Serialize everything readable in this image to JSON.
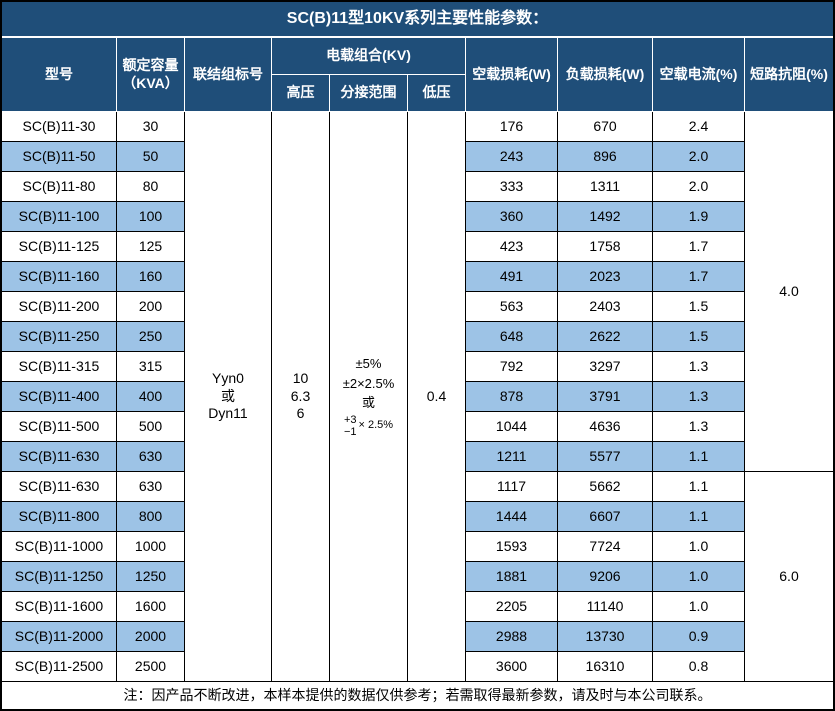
{
  "title": "SC(B)11型10KV系列主要性能参数：",
  "colors": {
    "header_bg": "#1F4E79",
    "row_stripe": "#9DC3E6",
    "grid_border": "#000000"
  },
  "table": {
    "headers": {
      "model": "型号",
      "capacity_line1": "额定容量",
      "capacity_line2": "（KVA）",
      "connection": "联结组标号",
      "load_combo": "电载组合(KV)",
      "hv": "高压",
      "tap": "分接范围",
      "lv": "低压",
      "no_load_loss": "空载损耗(W)",
      "load_loss": "负载损耗(W)",
      "no_load_current": "空载电流(%)",
      "impedance": "短路抗阻(%)"
    },
    "merged": {
      "connection_lines": [
        "Yyn0",
        "或",
        "Dyn11"
      ],
      "hv_lines": [
        "10",
        "6.3",
        "6"
      ],
      "tap": {
        "line1": "±5%",
        "line2": "±2×2.5%",
        "line3": "或",
        "stack_top": "+3",
        "stack_bottom": "−1",
        "stack_suffix": "× 2.5%"
      },
      "lv": "0.4"
    },
    "rows": [
      {
        "model": "SC(B)11-30",
        "kva": "30",
        "no_load_loss": "176",
        "load_loss": "670",
        "no_load_current": "2.4"
      },
      {
        "model": "SC(B)11-50",
        "kva": "50",
        "no_load_loss": "243",
        "load_loss": "896",
        "no_load_current": "2.0"
      },
      {
        "model": "SC(B)11-80",
        "kva": "80",
        "no_load_loss": "333",
        "load_loss": "1311",
        "no_load_current": "2.0"
      },
      {
        "model": "SC(B)11-100",
        "kva": "100",
        "no_load_loss": "360",
        "load_loss": "1492",
        "no_load_current": "1.9"
      },
      {
        "model": "SC(B)11-125",
        "kva": "125",
        "no_load_loss": "423",
        "load_loss": "1758",
        "no_load_current": "1.7"
      },
      {
        "model": "SC(B)11-160",
        "kva": "160",
        "no_load_loss": "491",
        "load_loss": "2023",
        "no_load_current": "1.7"
      },
      {
        "model": "SC(B)11-200",
        "kva": "200",
        "no_load_loss": "563",
        "load_loss": "2403",
        "no_load_current": "1.5"
      },
      {
        "model": "SC(B)11-250",
        "kva": "250",
        "no_load_loss": "648",
        "load_loss": "2622",
        "no_load_current": "1.5"
      },
      {
        "model": "SC(B)11-315",
        "kva": "315",
        "no_load_loss": "792",
        "load_loss": "3297",
        "no_load_current": "1.3"
      },
      {
        "model": "SC(B)11-400",
        "kva": "400",
        "no_load_loss": "878",
        "load_loss": "3791",
        "no_load_current": "1.3"
      },
      {
        "model": "SC(B)11-500",
        "kva": "500",
        "no_load_loss": "1044",
        "load_loss": "4636",
        "no_load_current": "1.3"
      },
      {
        "model": "SC(B)11-630",
        "kva": "630",
        "no_load_loss": "1211",
        "load_loss": "5577",
        "no_load_current": "1.1"
      },
      {
        "model": "SC(B)11-630",
        "kva": "630",
        "no_load_loss": "1117",
        "load_loss": "5662",
        "no_load_current": "1.1"
      },
      {
        "model": "SC(B)11-800",
        "kva": "800",
        "no_load_loss": "1444",
        "load_loss": "6607",
        "no_load_current": "1.1"
      },
      {
        "model": "SC(B)11-1000",
        "kva": "1000",
        "no_load_loss": "1593",
        "load_loss": "7724",
        "no_load_current": "1.0"
      },
      {
        "model": "SC(B)11-1250",
        "kva": "1250",
        "no_load_loss": "1881",
        "load_loss": "9206",
        "no_load_current": "1.0"
      },
      {
        "model": "SC(B)11-1600",
        "kva": "1600",
        "no_load_loss": "2205",
        "load_loss": "11140",
        "no_load_current": "1.0"
      },
      {
        "model": "SC(B)11-2000",
        "kva": "2000",
        "no_load_loss": "2988",
        "load_loss": "13730",
        "no_load_current": "0.9"
      },
      {
        "model": "SC(B)11-2500",
        "kva": "2500",
        "no_load_loss": "3600",
        "load_loss": "16310",
        "no_load_current": "0.8"
      }
    ],
    "impedance_groups": [
      {
        "value": "4.0",
        "span": 12
      },
      {
        "value": "6.0",
        "span": 7
      }
    ]
  },
  "footer_note": "注：因产品不断改进，本样本提供的数据仅供参考；若需取得最新参数，请及时与本公司联系。"
}
